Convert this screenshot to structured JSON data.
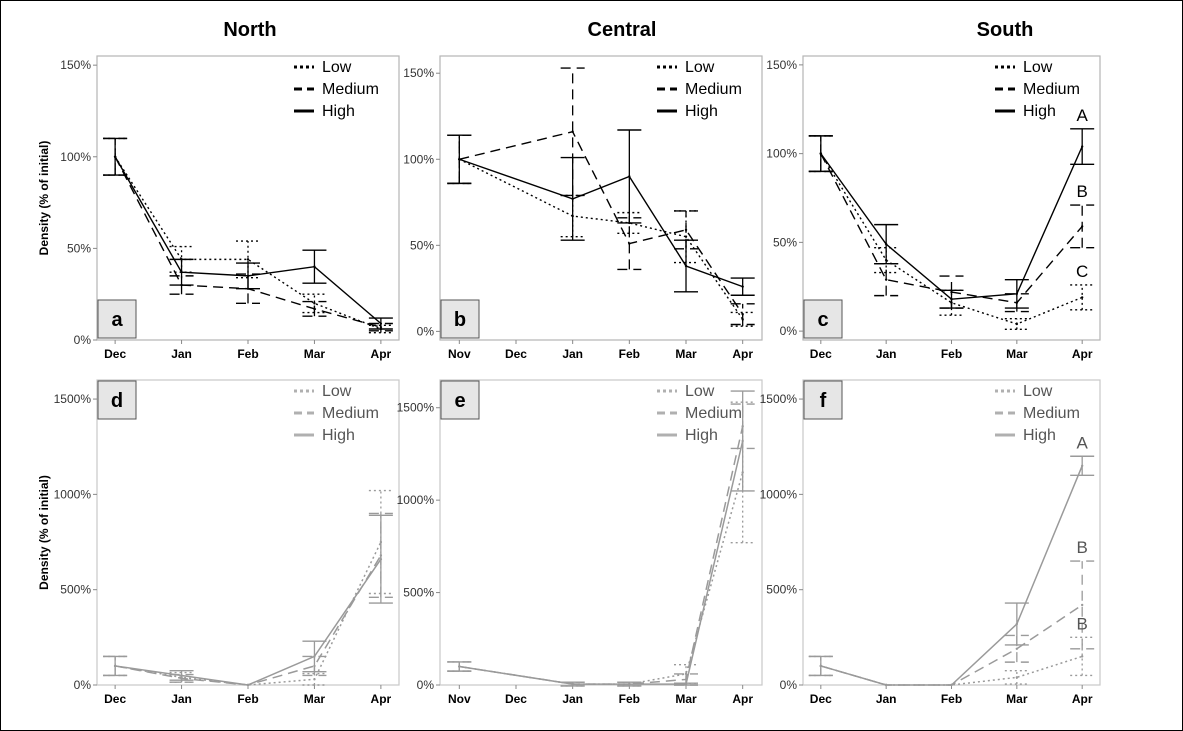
{
  "figure": {
    "columns": [
      "North",
      "Central",
      "South"
    ],
    "ylabel": "Density (% of initial)"
  },
  "chart_data": [
    {
      "id": "a",
      "panel": "a",
      "type": "line",
      "title": "North",
      "xlabel": "",
      "ylabel": "Density (% of initial)",
      "ylim": [
        0,
        155
      ],
      "yticks": [
        0,
        50,
        100,
        150
      ],
      "ytick_labels": [
        "0%",
        "50%",
        "100%",
        "150%"
      ],
      "categories": [
        "Dec",
        "Jan",
        "Feb",
        "Mar",
        "Apr"
      ],
      "legend": [
        "Low",
        "Medium",
        "High"
      ],
      "legend_position": "top-right",
      "series": [
        {
          "name": "Low",
          "style": "dotted",
          "values": [
            100,
            44,
            44,
            20,
            6
          ],
          "err": [
            10,
            7,
            10,
            5,
            2
          ]
        },
        {
          "name": "Medium",
          "style": "dashed",
          "values": [
            100,
            30,
            28,
            17,
            7
          ],
          "err": [
            10,
            5,
            8,
            4,
            2
          ]
        },
        {
          "name": "High",
          "style": "solid",
          "values": [
            100,
            37,
            35,
            40,
            9
          ],
          "err": [
            10,
            7,
            7,
            9,
            3
          ]
        }
      ],
      "sig_letters": []
    },
    {
      "id": "b",
      "panel": "b",
      "type": "line",
      "title": "Central",
      "xlabel": "",
      "ylabel": "",
      "ylim": [
        -5,
        160
      ],
      "yticks": [
        0,
        50,
        100,
        150
      ],
      "ytick_labels": [
        "0%",
        "50%",
        "100%",
        "150%"
      ],
      "categories": [
        "Nov",
        "Dec",
        "Jan",
        "Feb",
        "Mar",
        "Apr"
      ],
      "legend": [
        "Low",
        "Medium",
        "High"
      ],
      "legend_position": "top-right",
      "series": [
        {
          "name": "Low",
          "style": "dotted",
          "values": [
            100,
            null,
            67,
            63,
            55,
            7
          ],
          "err": [
            14,
            null,
            12,
            6,
            15,
            4
          ]
        },
        {
          "name": "Medium",
          "style": "dashed",
          "values": [
            100,
            null,
            116,
            51,
            59,
            10
          ],
          "err": [
            14,
            null,
            37,
            15,
            11,
            6
          ]
        },
        {
          "name": "High",
          "style": "solid",
          "values": [
            100,
            null,
            77,
            90,
            38,
            26
          ],
          "err": [
            14,
            null,
            24,
            27,
            15,
            5
          ]
        }
      ],
      "sig_letters": []
    },
    {
      "id": "c",
      "panel": "c",
      "type": "line",
      "title": "South",
      "xlabel": "",
      "ylabel": "",
      "ylim": [
        -5,
        155
      ],
      "yticks": [
        0,
        50,
        100,
        150
      ],
      "ytick_labels": [
        "0%",
        "50%",
        "100%",
        "150%"
      ],
      "categories": [
        "Dec",
        "Jan",
        "Feb",
        "Mar",
        "Apr"
      ],
      "legend": [
        "Low",
        "Medium",
        "High"
      ],
      "legend_position": "top-right",
      "series": [
        {
          "name": "Low",
          "style": "dotted",
          "values": [
            100,
            40,
            16,
            4,
            19
          ],
          "err": [
            10,
            7,
            7,
            3,
            7
          ]
        },
        {
          "name": "Medium",
          "style": "dashed",
          "values": [
            100,
            29,
            22,
            16,
            59
          ],
          "err": [
            10,
            9,
            9,
            5,
            12
          ]
        },
        {
          "name": "High",
          "style": "solid",
          "values": [
            100,
            49,
            18,
            21,
            104
          ],
          "err": [
            10,
            11,
            5,
            8,
            10
          ]
        }
      ],
      "sig_letters": [
        "A",
        "B",
        "C"
      ]
    },
    {
      "id": "d",
      "panel": "d",
      "type": "line",
      "title": "",
      "xlabel": "",
      "ylabel": "Density (% of initial)",
      "ylim": [
        0,
        1600
      ],
      "yticks": [
        0,
        500,
        1000,
        1500
      ],
      "ytick_labels": [
        "0%",
        "500%",
        "1000%",
        "1500%"
      ],
      "categories": [
        "Dec",
        "Jan",
        "Feb",
        "Mar",
        "Apr"
      ],
      "legend": [
        "Low",
        "Medium",
        "High"
      ],
      "legend_position": "top-right",
      "series": [
        {
          "name": "Low",
          "style": "dotted",
          "values": [
            100,
            40,
            0,
            30,
            750
          ],
          "err": [
            50,
            25,
            0,
            30,
            270
          ]
        },
        {
          "name": "Medium",
          "style": "dashed",
          "values": [
            100,
            35,
            0,
            100,
            680
          ],
          "err": [
            50,
            20,
            0,
            50,
            220
          ]
        },
        {
          "name": "High",
          "style": "solid",
          "values": [
            100,
            50,
            0,
            150,
            660
          ],
          "err": [
            50,
            25,
            0,
            80,
            230
          ]
        }
      ],
      "sig_letters": []
    },
    {
      "id": "e",
      "panel": "e",
      "type": "line",
      "title": "",
      "xlabel": "",
      "ylabel": "",
      "ylim": [
        0,
        1650
      ],
      "yticks": [
        0,
        500,
        1000,
        1500
      ],
      "ytick_labels": [
        "0%",
        "500%",
        "1000%",
        "1500%"
      ],
      "categories": [
        "Nov",
        "Dec",
        "Jan",
        "Feb",
        "Mar",
        "Apr"
      ],
      "legend": [
        "Low",
        "Medium",
        "High"
      ],
      "legend_position": "top-right",
      "series": [
        {
          "name": "Low",
          "style": "dotted",
          "values": [
            100,
            null,
            5,
            5,
            60,
            1150
          ],
          "err": [
            25,
            null,
            10,
            10,
            50,
            380
          ]
        },
        {
          "name": "Medium",
          "style": "dashed",
          "values": [
            100,
            null,
            5,
            5,
            30,
            1400
          ],
          "err": [
            25,
            null,
            10,
            10,
            30,
            120
          ]
        },
        {
          "name": "High",
          "style": "solid",
          "values": [
            100,
            null,
            5,
            5,
            5,
            1320
          ],
          "err": [
            25,
            null,
            10,
            10,
            5,
            270
          ]
        }
      ],
      "sig_letters": []
    },
    {
      "id": "f",
      "panel": "f",
      "type": "line",
      "title": "",
      "xlabel": "",
      "ylabel": "",
      "ylim": [
        0,
        1600
      ],
      "yticks": [
        0,
        500,
        1000,
        1500
      ],
      "ytick_labels": [
        "0%",
        "500%",
        "1000%",
        "1500%"
      ],
      "categories": [
        "Dec",
        "Jan",
        "Feb",
        "Mar",
        "Apr"
      ],
      "legend": [
        "Low",
        "Medium",
        "High"
      ],
      "legend_position": "top-right",
      "series": [
        {
          "name": "Low",
          "style": "dotted",
          "values": [
            100,
            0,
            0,
            40,
            150
          ],
          "err": [
            50,
            0,
            0,
            35,
            100
          ]
        },
        {
          "name": "Medium",
          "style": "dashed",
          "values": [
            100,
            0,
            0,
            190,
            420
          ],
          "err": [
            50,
            0,
            0,
            70,
            230
          ]
        },
        {
          "name": "High",
          "style": "solid",
          "values": [
            100,
            0,
            0,
            320,
            1150
          ],
          "err": [
            50,
            0,
            0,
            110,
            50
          ]
        }
      ],
      "sig_letters": [
        "A",
        "B",
        "B"
      ]
    }
  ]
}
